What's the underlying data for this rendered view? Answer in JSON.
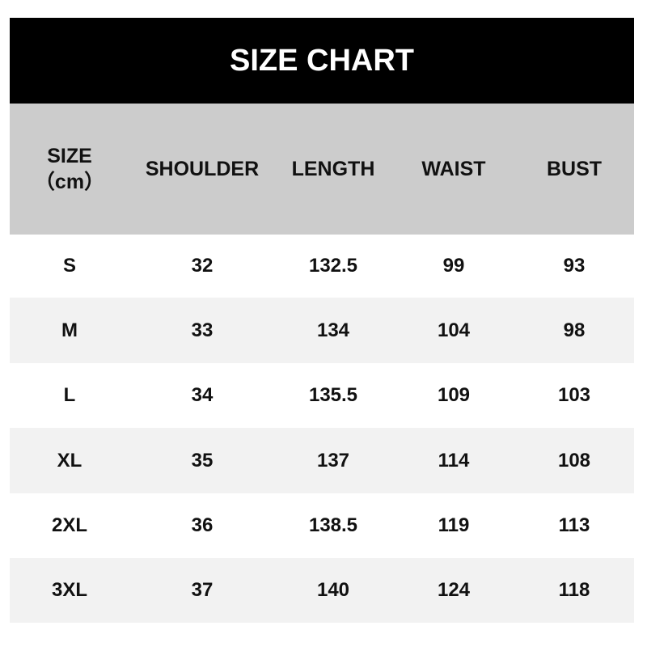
{
  "title": "SIZE CHART",
  "columns": [
    "SIZE\n（cm）",
    "SHOULDER",
    "LENGTH",
    "WAIST",
    "BUST"
  ],
  "size_label": "SIZE",
  "unit_label": "（cm）",
  "rows": [
    [
      "S",
      "32",
      "132.5",
      "99",
      "93"
    ],
    [
      "M",
      "33",
      "134",
      "104",
      "98"
    ],
    [
      "L",
      "34",
      "135.5",
      "109",
      "103"
    ],
    [
      "XL",
      "35",
      "137",
      "114",
      "108"
    ],
    [
      "2XL",
      "36",
      "138.5",
      "119",
      "113"
    ],
    [
      "3XL",
      "37",
      "140",
      "124",
      "118"
    ]
  ],
  "colors": {
    "title_bg": "#000000",
    "header_bg": "#cccccc",
    "alt_row_bg": "#f2f2f2"
  }
}
